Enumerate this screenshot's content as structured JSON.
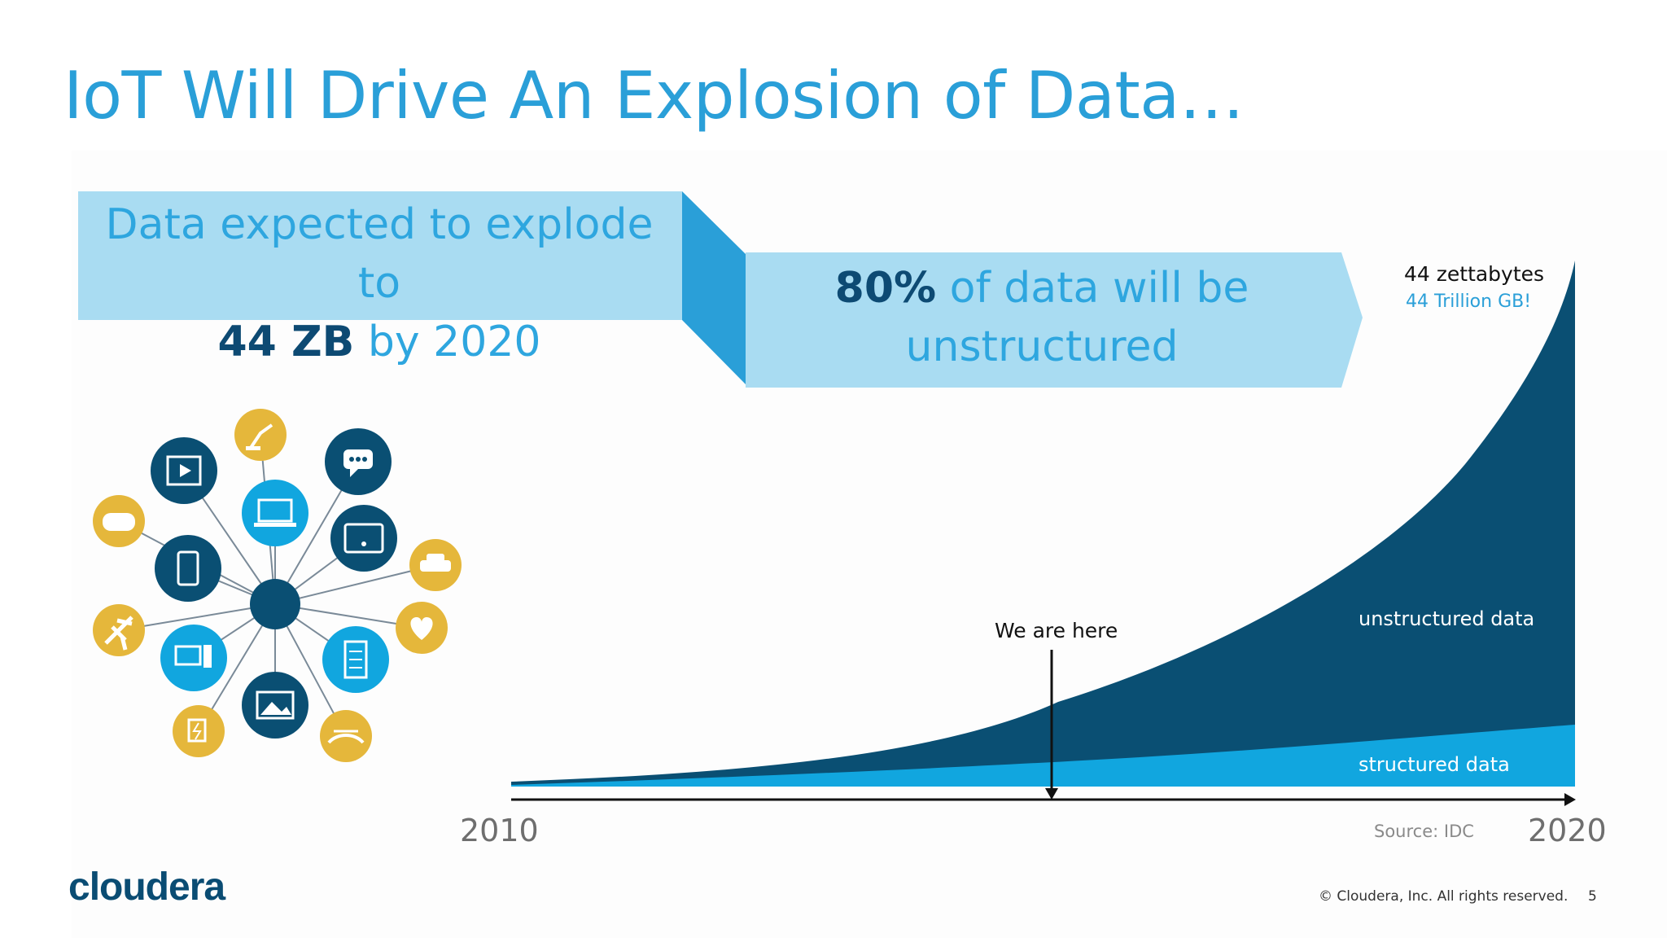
{
  "slide": {
    "title": "IoT Will Drive An Explosion of Data…",
    "page_number": "5",
    "copyright": "© Cloudera, Inc. All rights reserved.",
    "logo": "cloudera"
  },
  "banner_left": {
    "line1": "Data expected to explode to",
    "strong": "44 ZB",
    "rest": " by 2020"
  },
  "banner_right": {
    "strong": "80%",
    "rest": " of data will be",
    "line2": "unstructured"
  },
  "chart": {
    "top_label": "44 zettabytes",
    "top_sub_label": "44 Trillion GB!",
    "marker_label": "We are here",
    "unstructured_label": "unstructured data",
    "structured_label": "structured data",
    "x_start": "2010",
    "x_end": "2020",
    "source": "Source: IDC"
  },
  "chart_data": {
    "type": "area",
    "x": [
      "2010",
      "2020"
    ],
    "series": [
      {
        "name": "unstructured data"
      },
      {
        "name": "structured data"
      }
    ],
    "annotations": [
      "44 zettabytes",
      "44 Trillion GB!",
      "We are here",
      "Source: IDC"
    ]
  },
  "iot_icons": [
    "film-icon",
    "robot-arm-icon",
    "chat-icon",
    "gamepad-icon",
    "laptop-icon",
    "tablet-wifi-icon",
    "smartphone-icon",
    "car-icon",
    "airplane-icon",
    "heart-icon",
    "desktop-icon",
    "server-icon",
    "image-icon",
    "ev-charger-icon",
    "drone-icon"
  ],
  "colors": {
    "title": "#2a9fd8",
    "dark_blue": "#0a4f73",
    "light_blue": "#11a6df",
    "banner_fill": "#a9dcf2",
    "banner_fold": "#2a9fd8",
    "gold": "#e5b73b"
  }
}
